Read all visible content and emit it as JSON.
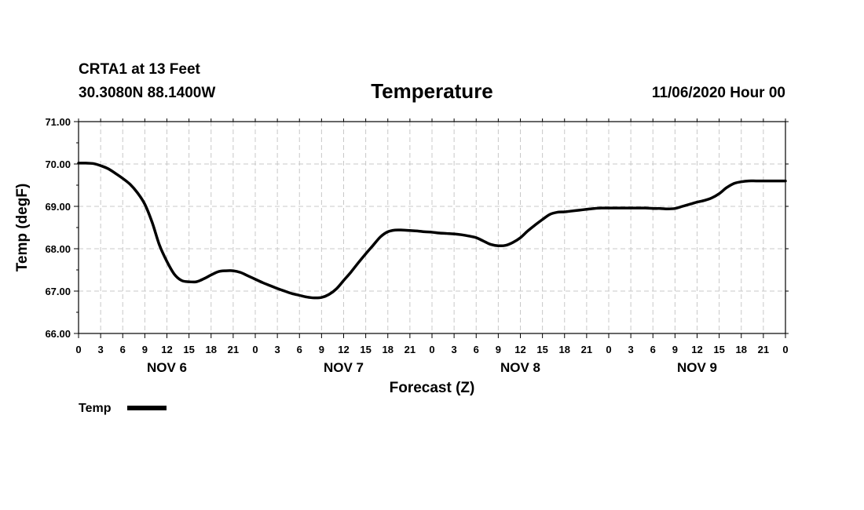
{
  "header": {
    "station": "CRTA1 at 13 Feet",
    "coords": "30.3080N 88.1400W",
    "title": "Temperature",
    "datetime": "11/06/2020 Hour 00"
  },
  "legend": {
    "label": "Temp"
  },
  "chart_data": {
    "type": "line",
    "title": "Temperature",
    "xlabel": "Forecast (Z)",
    "ylabel": "Temp (degF)",
    "ylim": [
      66.0,
      71.0
    ],
    "xlim_hours": [
      0,
      96
    ],
    "grid": true,
    "y_ticks": [
      "66.00",
      "67.00",
      "68.00",
      "69.00",
      "70.00",
      "71.00"
    ],
    "x_tick_labels": [
      "0",
      "3",
      "6",
      "9",
      "12",
      "15",
      "18",
      "21",
      "0",
      "3",
      "6",
      "9",
      "12",
      "15",
      "18",
      "21",
      "0",
      "3",
      "6",
      "9",
      "12",
      "15",
      "18",
      "21",
      "0",
      "3",
      "6",
      "9",
      "12",
      "15",
      "18",
      "21",
      "0"
    ],
    "day_labels": [
      {
        "label": "NOV 6",
        "hour": 12
      },
      {
        "label": "NOV 7",
        "hour": 36
      },
      {
        "label": "NOV 8",
        "hour": 60
      },
      {
        "label": "NOV 9",
        "hour": 84
      }
    ],
    "series": [
      {
        "name": "Temp",
        "color": "#000000",
        "x": [
          0,
          1,
          2,
          3,
          4,
          5,
          6,
          7,
          8,
          9,
          10,
          11,
          12,
          13,
          14,
          15,
          16,
          17,
          18,
          19,
          20,
          21,
          22,
          23,
          24,
          25,
          26,
          27,
          28,
          29,
          30,
          31,
          32,
          33,
          34,
          35,
          36,
          37,
          38,
          39,
          40,
          41,
          42,
          43,
          44,
          45,
          46,
          47,
          48,
          49,
          50,
          51,
          52,
          53,
          54,
          55,
          56,
          57,
          58,
          59,
          60,
          61,
          62,
          63,
          64,
          65,
          66,
          67,
          68,
          69,
          70,
          71,
          72,
          73,
          74,
          75,
          76,
          77,
          78,
          79,
          80,
          81,
          82,
          83,
          84,
          85,
          86,
          87,
          88,
          89,
          90,
          91,
          92,
          93,
          94,
          95,
          96
        ],
        "values": [
          70.02,
          70.02,
          70.01,
          69.96,
          69.89,
          69.78,
          69.66,
          69.52,
          69.32,
          69.05,
          68.62,
          68.08,
          67.7,
          67.4,
          67.25,
          67.22,
          67.22,
          67.29,
          67.38,
          67.46,
          67.48,
          67.48,
          67.44,
          67.36,
          67.28,
          67.2,
          67.13,
          67.06,
          67.0,
          66.94,
          66.9,
          66.86,
          66.84,
          66.85,
          66.92,
          67.05,
          67.25,
          67.45,
          67.67,
          67.88,
          68.08,
          68.28,
          68.4,
          68.44,
          68.44,
          68.43,
          68.42,
          68.4,
          68.39,
          68.37,
          68.36,
          68.35,
          68.33,
          68.3,
          68.26,
          68.18,
          68.1,
          68.07,
          68.08,
          68.15,
          68.26,
          68.42,
          68.56,
          68.69,
          68.81,
          68.86,
          68.87,
          68.89,
          68.91,
          68.93,
          68.95,
          68.96,
          68.96,
          68.96,
          68.96,
          68.96,
          68.96,
          68.96,
          68.95,
          68.95,
          68.94,
          68.95,
          69.0,
          69.05,
          69.1,
          69.14,
          69.2,
          69.3,
          69.44,
          69.54,
          69.58,
          69.6,
          69.6,
          69.6,
          69.6,
          69.6,
          69.6
        ]
      }
    ]
  }
}
